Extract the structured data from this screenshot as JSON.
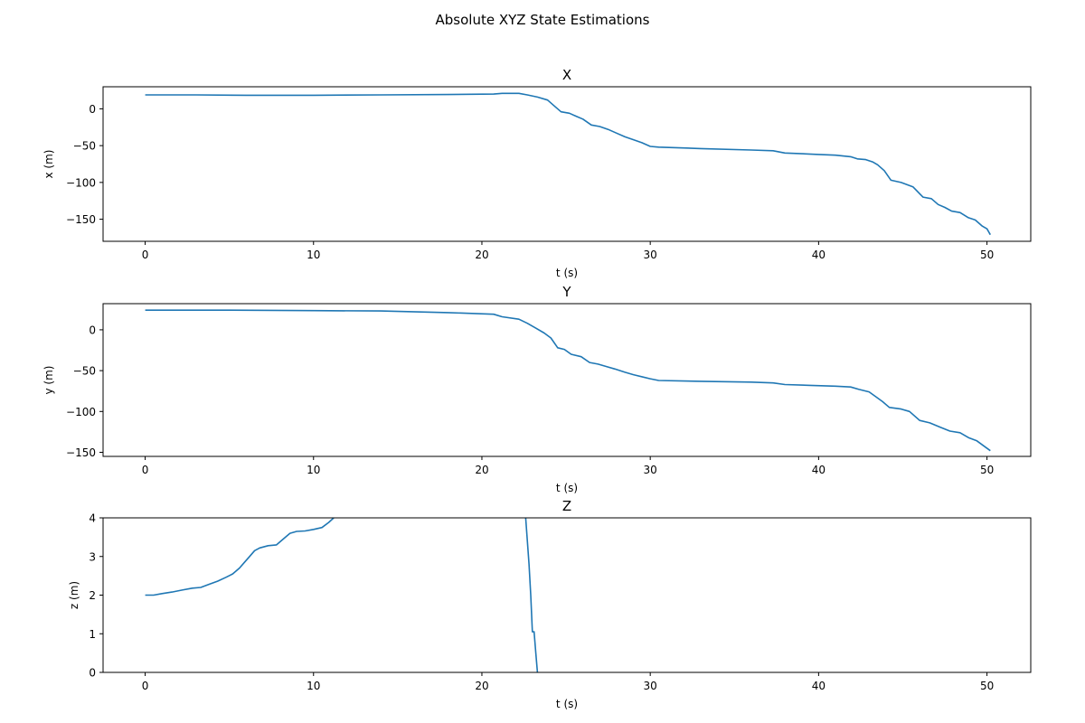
{
  "chart_data": {
    "type": "line",
    "title": "Absolute XYZ State Estimations",
    "subplots": [
      {
        "title": "X",
        "xlabel": "t (s)",
        "ylabel": "x (m)",
        "xlim": [
          -2.5,
          52.6
        ],
        "ylim": [
          -180,
          30
        ],
        "xticks": [
          0,
          10,
          20,
          30,
          40,
          50
        ],
        "yticks": [
          0,
          -50,
          -100,
          -150
        ],
        "series": [
          {
            "color": "#1f77b4",
            "x": [
              0,
              3,
              6,
              10,
              14,
              18,
              20.7,
              21.2,
              22.2,
              22.7,
              23.3,
              23.9,
              24.3,
              24.7,
              25.2,
              25.6,
              26.0,
              26.5,
              27.0,
              27.5,
              28.0,
              28.5,
              29.0,
              29.5,
              30.0,
              30.5,
              33,
              36,
              37.3,
              38.0,
              39,
              40,
              41,
              41.9,
              42.3,
              42.8,
              43.2,
              43.5,
              43.9,
              44.3,
              44.9,
              45.6,
              46.2,
              46.7,
              47.1,
              47.5,
              47.9,
              48.4,
              48.9,
              49.3,
              49.7,
              50.0,
              50.2
            ],
            "y": [
              19,
              19,
              18.5,
              18.5,
              19,
              19.5,
              20,
              21,
              21,
              19,
              16,
              12,
              4,
              -4,
              -6,
              -10,
              -14,
              -22,
              -24,
              -28,
              -33,
              -38,
              -42,
              -46,
              -51,
              -52,
              -54,
              -56,
              -57,
              -60,
              -61,
              -62,
              -63,
              -65,
              -68,
              -69,
              -72,
              -76,
              -84,
              -97,
              -100,
              -106,
              -120,
              -122,
              -130,
              -134,
              -139,
              -141,
              -148,
              -151,
              -159,
              -163,
              -171
            ]
          }
        ]
      },
      {
        "title": "Y",
        "xlabel": "t (s)",
        "ylabel": "y (m)",
        "xlim": [
          -2.5,
          52.6
        ],
        "ylim": [
          -155,
          32
        ],
        "xticks": [
          0,
          10,
          20,
          30,
          40,
          50
        ],
        "yticks": [
          0,
          -50,
          -100,
          -150
        ],
        "series": [
          {
            "color": "#1f77b4",
            "x": [
              0,
              5,
              10,
              14,
              18,
              20.7,
              21.2,
              22.2,
              22.7,
              23.2,
              23.7,
              24.1,
              24.5,
              24.9,
              25.3,
              25.9,
              26.4,
              26.9,
              27.4,
              27.9,
              28.5,
              29.0,
              29.6,
              30.0,
              30.5,
              33,
              36,
              37.3,
              38.0,
              39.5,
              41.0,
              41.9,
              42.4,
              43.0,
              43.4,
              43.8,
              44.2,
              44.9,
              45.4,
              46.0,
              46.6,
              47.2,
              47.8,
              48.4,
              48.9,
              49.4,
              49.8,
              50.2
            ],
            "y": [
              24,
              24,
              23.5,
              23,
              21,
              19,
              16,
              13,
              8,
              2,
              -4,
              -10,
              -22,
              -24,
              -30,
              -33,
              -40,
              -42,
              -45,
              -48,
              -52,
              -55,
              -58,
              -60,
              -62,
              -63,
              -64,
              -65,
              -67,
              -68,
              -69,
              -70,
              -73,
              -76,
              -82,
              -88,
              -95,
              -97,
              -100,
              -111,
              -114,
              -119,
              -124,
              -126,
              -132,
              -136,
              -142,
              -148
            ]
          }
        ]
      },
      {
        "title": "Z",
        "xlabel": "t (s)",
        "ylabel": "z (m)",
        "xlim": [
          -2.5,
          52.6
        ],
        "ylim": [
          0,
          4
        ],
        "xticks": [
          0,
          10,
          20,
          30,
          40,
          50
        ],
        "yticks": [
          0,
          1,
          2,
          3,
          4
        ],
        "series": [
          {
            "color": "#1f77b4",
            "x": [
              0,
              0.5,
              1,
              1.6,
              2.2,
              2.8,
              3.3,
              3.8,
              4.3,
              4.8,
              5.2,
              5.6,
              5.9,
              6.2,
              6.5,
              6.8,
              7.3,
              7.8,
              8.2,
              8.6,
              9.0,
              9.5,
              10.0,
              10.5,
              10.9,
              11.2,
              null,
              22.6,
              22.8,
              22.9,
              23.0,
              23.1,
              23.2,
              23.3
            ],
            "y": [
              2.0,
              2.0,
              2.04,
              2.08,
              2.13,
              2.18,
              2.2,
              2.28,
              2.36,
              2.46,
              2.55,
              2.7,
              2.85,
              3.0,
              3.15,
              3.22,
              3.28,
              3.3,
              3.45,
              3.6,
              3.65,
              3.66,
              3.7,
              3.75,
              3.88,
              4.0,
              null,
              4.0,
              2.8,
              2.0,
              1.05,
              1.05,
              0.5,
              0.0
            ]
          }
        ]
      }
    ]
  }
}
